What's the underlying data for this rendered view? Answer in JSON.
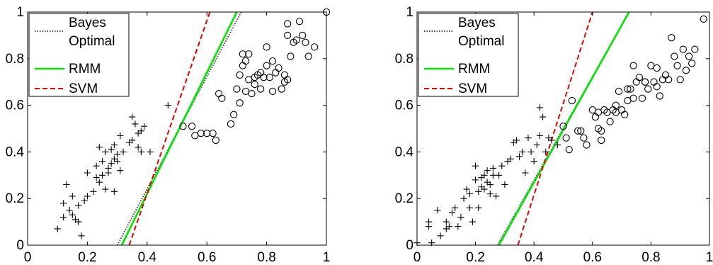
{
  "colors": {
    "rmm": "#00e600",
    "svm": "#e60000",
    "bayes": "#444444",
    "marker": "#000000"
  },
  "chart_data": [
    {
      "type": "scatter",
      "xlim": [
        0,
        1
      ],
      "ylim": [
        0,
        1
      ],
      "xticks": [
        {
          "v": 0,
          "label": "0"
        },
        {
          "v": 0.2,
          "label": "0.2"
        },
        {
          "v": 0.4,
          "label": "0.4"
        },
        {
          "v": 0.6,
          "label": "0.6"
        },
        {
          "v": 0.8,
          "label": "0.8"
        },
        {
          "v": 1,
          "label": "1"
        }
      ],
      "yticks": [
        {
          "v": 0,
          "label": "0"
        },
        {
          "v": 0.2,
          "label": "0.2"
        },
        {
          "v": 0.4,
          "label": "0.4"
        },
        {
          "v": 0.6,
          "label": "0.6"
        },
        {
          "v": 0.8,
          "label": "0.8"
        },
        {
          "v": 1,
          "label": "1"
        }
      ],
      "legend": {
        "placement": "top-left",
        "entries": [
          {
            "key": "bayes",
            "line1": "Bayes",
            "line2": "Optimal",
            "style": "dotted"
          },
          {
            "key": "rmm",
            "line1": "RMM",
            "style": "solid"
          },
          {
            "key": "svm",
            "line1": "SVM",
            "style": "dashed"
          }
        ]
      },
      "lines": [
        {
          "key": "bayes",
          "style": "dotted",
          "points": [
            [
              0.3,
              0
            ],
            [
              0.715,
              1
            ]
          ]
        },
        {
          "key": "rmm",
          "style": "solid",
          "points": [
            [
              0.315,
              0
            ],
            [
              0.7,
              1
            ]
          ]
        },
        {
          "key": "svm",
          "style": "dashed",
          "points": [
            [
              0.34,
              0
            ],
            [
              0.61,
              1
            ]
          ]
        }
      ],
      "series": [
        {
          "marker": "plus",
          "points": [
            [
              0.1,
              0.07
            ],
            [
              0.12,
              0.12
            ],
            [
              0.12,
              0.18
            ],
            [
              0.13,
              0.26
            ],
            [
              0.14,
              0.15
            ],
            [
              0.15,
              0.13
            ],
            [
              0.15,
              0.21
            ],
            [
              0.16,
              0.11
            ],
            [
              0.17,
              0.1
            ],
            [
              0.17,
              0.17
            ],
            [
              0.18,
              0.04
            ],
            [
              0.19,
              0.19
            ],
            [
              0.2,
              0.21
            ],
            [
              0.2,
              0.31
            ],
            [
              0.22,
              0.23
            ],
            [
              0.23,
              0.29
            ],
            [
              0.23,
              0.34
            ],
            [
              0.24,
              0.42
            ],
            [
              0.24,
              0.27
            ],
            [
              0.25,
              0.3
            ],
            [
              0.25,
              0.36
            ],
            [
              0.26,
              0.24
            ],
            [
              0.26,
              0.4
            ],
            [
              0.27,
              0.31
            ],
            [
              0.27,
              0.33
            ],
            [
              0.28,
              0.35
            ],
            [
              0.28,
              0.41
            ],
            [
              0.29,
              0.23
            ],
            [
              0.29,
              0.37
            ],
            [
              0.29,
              0.43
            ],
            [
              0.3,
              0.36
            ],
            [
              0.3,
              0.39
            ],
            [
              0.31,
              0.47
            ],
            [
              0.31,
              0.32
            ],
            [
              0.32,
              0.4
            ],
            [
              0.34,
              0.44
            ],
            [
              0.35,
              0.45
            ],
            [
              0.35,
              0.55
            ],
            [
              0.36,
              0.52
            ],
            [
              0.37,
              0.48
            ],
            [
              0.37,
              0.42
            ],
            [
              0.38,
              0.49
            ],
            [
              0.38,
              0.4
            ],
            [
              0.39,
              0.51
            ],
            [
              0.41,
              0.4
            ],
            [
              0.47,
              0.6
            ]
          ]
        },
        {
          "marker": "circle",
          "points": [
            [
              0.52,
              0.51
            ],
            [
              0.55,
              0.51
            ],
            [
              0.56,
              0.47
            ],
            [
              0.58,
              0.48
            ],
            [
              0.6,
              0.48
            ],
            [
              0.62,
              0.48
            ],
            [
              0.63,
              0.45
            ],
            [
              0.64,
              0.65
            ],
            [
              0.65,
              0.63
            ],
            [
              0.68,
              0.52
            ],
            [
              0.69,
              0.56
            ],
            [
              0.7,
              0.67
            ],
            [
              0.71,
              0.61
            ],
            [
              0.71,
              0.73
            ],
            [
              0.72,
              0.77
            ],
            [
              0.72,
              0.82
            ],
            [
              0.73,
              0.66
            ],
            [
              0.73,
              0.79
            ],
            [
              0.74,
              0.71
            ],
            [
              0.74,
              0.82
            ],
            [
              0.75,
              0.65
            ],
            [
              0.76,
              0.69
            ],
            [
              0.76,
              0.72
            ],
            [
              0.77,
              0.73
            ],
            [
              0.78,
              0.67
            ],
            [
              0.78,
              0.74
            ],
            [
              0.79,
              0.72
            ],
            [
              0.8,
              0.77
            ],
            [
              0.8,
              0.85
            ],
            [
              0.81,
              0.72
            ],
            [
              0.82,
              0.66
            ],
            [
              0.82,
              0.79
            ],
            [
              0.83,
              0.74
            ],
            [
              0.84,
              0.76
            ],
            [
              0.85,
              0.67
            ],
            [
              0.86,
              0.7
            ],
            [
              0.86,
              0.73
            ],
            [
              0.87,
              0.71
            ],
            [
              0.87,
              0.9
            ],
            [
              0.87,
              0.95
            ],
            [
              0.88,
              0.81
            ],
            [
              0.89,
              0.87
            ],
            [
              0.9,
              0.88
            ],
            [
              0.91,
              0.96
            ],
            [
              0.92,
              0.9
            ],
            [
              0.93,
              0.87
            ],
            [
              0.94,
              0.81
            ],
            [
              0.96,
              0.85
            ],
            [
              1.0,
              1.0
            ]
          ]
        }
      ]
    },
    {
      "type": "scatter",
      "xlim": [
        0,
        1
      ],
      "ylim": [
        0,
        1
      ],
      "xticks": [
        {
          "v": 0,
          "label": "0"
        },
        {
          "v": 0.2,
          "label": "0.2"
        },
        {
          "v": 0.4,
          "label": "0.4"
        },
        {
          "v": 0.6,
          "label": "0.6"
        },
        {
          "v": 0.8,
          "label": "0.8"
        },
        {
          "v": 1,
          "label": "1"
        }
      ],
      "yticks": [
        {
          "v": 0,
          "label": "0"
        },
        {
          "v": 0.2,
          "label": "0.2"
        },
        {
          "v": 0.4,
          "label": "0.4"
        },
        {
          "v": 0.6,
          "label": "0.6"
        },
        {
          "v": 0.8,
          "label": "0.8"
        },
        {
          "v": 1,
          "label": "1"
        }
      ],
      "legend": {
        "placement": "top-left",
        "entries": [
          {
            "key": "bayes",
            "line1": "Bayes",
            "line2": "Optimal",
            "style": "dotted"
          },
          {
            "key": "rmm",
            "line1": "RMM",
            "style": "solid"
          },
          {
            "key": "svm",
            "line1": "SVM",
            "style": "dashed"
          }
        ]
      },
      "lines": [
        {
          "key": "bayes",
          "style": "dotted",
          "points": [
            [
              0.275,
              0
            ],
            [
              0.725,
              1
            ]
          ]
        },
        {
          "key": "rmm",
          "style": "solid",
          "points": [
            [
              0.28,
              0
            ],
            [
              0.725,
              1
            ]
          ]
        },
        {
          "key": "svm",
          "style": "dashed",
          "points": [
            [
              0.345,
              0
            ],
            [
              0.6,
              1
            ]
          ]
        }
      ],
      "series": [
        {
          "marker": "plus",
          "points": [
            [
              0.0,
              0.01
            ],
            [
              0.04,
              0.1
            ],
            [
              0.04,
              0.08
            ],
            [
              0.05,
              0.01
            ],
            [
              0.07,
              0.15
            ],
            [
              0.08,
              0.04
            ],
            [
              0.1,
              0.1
            ],
            [
              0.1,
              0.07
            ],
            [
              0.11,
              0.08
            ],
            [
              0.12,
              0.14
            ],
            [
              0.13,
              0.16
            ],
            [
              0.14,
              0.08
            ],
            [
              0.15,
              0.12
            ],
            [
              0.16,
              0.2
            ],
            [
              0.17,
              0.24
            ],
            [
              0.18,
              0.16
            ],
            [
              0.18,
              0.22
            ],
            [
              0.19,
              0.1
            ],
            [
              0.2,
              0.34
            ],
            [
              0.2,
              0.28
            ],
            [
              0.21,
              0.23
            ],
            [
              0.21,
              0.16
            ],
            [
              0.22,
              0.29
            ],
            [
              0.22,
              0.25
            ],
            [
              0.23,
              0.3
            ],
            [
              0.23,
              0.24
            ],
            [
              0.24,
              0.32
            ],
            [
              0.24,
              0.27
            ],
            [
              0.25,
              0.22
            ],
            [
              0.25,
              0.26
            ],
            [
              0.26,
              0.3
            ],
            [
              0.26,
              0.33
            ],
            [
              0.27,
              0.21
            ],
            [
              0.28,
              0.3
            ],
            [
              0.29,
              0.34
            ],
            [
              0.3,
              0.26
            ],
            [
              0.31,
              0.36
            ],
            [
              0.32,
              0.37
            ],
            [
              0.33,
              0.44
            ],
            [
              0.34,
              0.45
            ],
            [
              0.35,
              0.38
            ],
            [
              0.36,
              0.4
            ],
            [
              0.37,
              0.31
            ],
            [
              0.38,
              0.46
            ],
            [
              0.39,
              0.4
            ],
            [
              0.4,
              0.36
            ],
            [
              0.41,
              0.43
            ],
            [
              0.42,
              0.59
            ],
            [
              0.42,
              0.47
            ],
            [
              0.43,
              0.55
            ],
            [
              0.44,
              0.4
            ],
            [
              0.45,
              0.46
            ],
            [
              0.46,
              0.45
            ],
            [
              0.48,
              0.43
            ]
          ]
        },
        {
          "marker": "circle",
          "points": [
            [
              0.5,
              0.51
            ],
            [
              0.51,
              0.46
            ],
            [
              0.52,
              0.41
            ],
            [
              0.53,
              0.62
            ],
            [
              0.55,
              0.49
            ],
            [
              0.56,
              0.49
            ],
            [
              0.57,
              0.46
            ],
            [
              0.58,
              0.43
            ],
            [
              0.6,
              0.58
            ],
            [
              0.61,
              0.55
            ],
            [
              0.62,
              0.5
            ],
            [
              0.62,
              0.57
            ],
            [
              0.63,
              0.45
            ],
            [
              0.63,
              0.49
            ],
            [
              0.64,
              0.58
            ],
            [
              0.65,
              0.57
            ],
            [
              0.66,
              0.53
            ],
            [
              0.67,
              0.58
            ],
            [
              0.68,
              0.57
            ],
            [
              0.68,
              0.6
            ],
            [
              0.69,
              0.66
            ],
            [
              0.7,
              0.58
            ],
            [
              0.71,
              0.56
            ],
            [
              0.72,
              0.62
            ],
            [
              0.72,
              0.67
            ],
            [
              0.73,
              0.67
            ],
            [
              0.74,
              0.63
            ],
            [
              0.74,
              0.77
            ],
            [
              0.75,
              0.7
            ],
            [
              0.76,
              0.72
            ],
            [
              0.77,
              0.63
            ],
            [
              0.78,
              0.7
            ],
            [
              0.78,
              0.7
            ],
            [
              0.79,
              0.67
            ],
            [
              0.8,
              0.77
            ],
            [
              0.81,
              0.7
            ],
            [
              0.82,
              0.68
            ],
            [
              0.82,
              0.76
            ],
            [
              0.83,
              0.64
            ],
            [
              0.84,
              0.71
            ],
            [
              0.85,
              0.73
            ],
            [
              0.86,
              0.71
            ],
            [
              0.87,
              0.89
            ],
            [
              0.88,
              0.81
            ],
            [
              0.89,
              0.77
            ],
            [
              0.9,
              0.71
            ],
            [
              0.91,
              0.84
            ],
            [
              0.92,
              0.75
            ],
            [
              0.93,
              0.81
            ],
            [
              0.94,
              0.78
            ],
            [
              0.95,
              0.84
            ],
            [
              0.98,
              0.97
            ]
          ]
        }
      ]
    }
  ]
}
